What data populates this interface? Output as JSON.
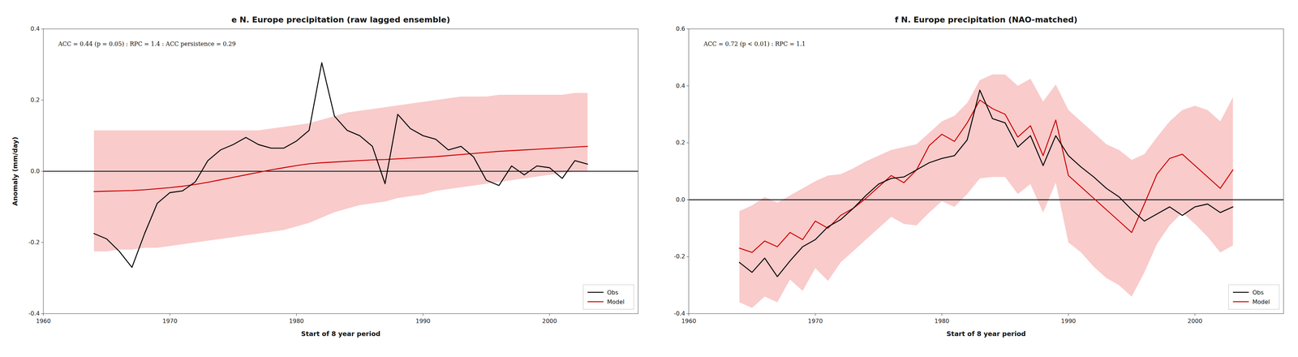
{
  "chart_data": [
    {
      "type": "line",
      "title": "e N. Europe precipitation (raw lagged ensemble)",
      "annotation": "ACC = 0.44 (p = 0.05) : RPC = 1.4 : ACC persistence = 0.29",
      "xlabel": "Start of 8 year period",
      "ylabel": "Anomaly (mm/day)",
      "x": [
        1964,
        1965,
        1966,
        1967,
        1968,
        1969,
        1970,
        1971,
        1972,
        1973,
        1974,
        1975,
        1976,
        1977,
        1978,
        1979,
        1980,
        1981,
        1982,
        1983,
        1984,
        1985,
        1986,
        1987,
        1988,
        1989,
        1990,
        1991,
        1992,
        1993,
        1994,
        1995,
        1996,
        1997,
        1998,
        1999,
        2000,
        2001,
        2002,
        2003
      ],
      "series": [
        {
          "name": "Obs",
          "color": "#000000",
          "values": [
            -0.175,
            -0.19,
            -0.225,
            -0.27,
            -0.175,
            -0.09,
            -0.06,
            -0.055,
            -0.03,
            0.03,
            0.06,
            0.075,
            0.095,
            0.075,
            0.065,
            0.065,
            0.085,
            0.115,
            0.305,
            0.155,
            0.115,
            0.1,
            0.07,
            -0.035,
            0.16,
            0.12,
            0.1,
            0.09,
            0.06,
            0.07,
            0.04,
            -0.025,
            -0.04,
            0.015,
            -0.01,
            0.015,
            0.01,
            -0.02,
            0.03,
            0.02
          ]
        },
        {
          "name": "Model",
          "color": "#cc0000",
          "values": [
            -0.057,
            -0.056,
            -0.055,
            -0.054,
            -0.052,
            -0.049,
            -0.046,
            -0.042,
            -0.037,
            -0.031,
            -0.024,
            -0.017,
            -0.01,
            -0.003,
            0.004,
            0.01,
            0.016,
            0.021,
            0.024,
            0.026,
            0.028,
            0.03,
            0.032,
            0.033,
            0.035,
            0.037,
            0.039,
            0.041,
            0.044,
            0.047,
            0.05,
            0.053,
            0.056,
            0.058,
            0.06,
            0.062,
            0.064,
            0.066,
            0.068,
            0.07
          ]
        }
      ],
      "band": {
        "color": "#f4a0a0",
        "upper": [
          0.115,
          0.115,
          0.115,
          0.115,
          0.115,
          0.115,
          0.115,
          0.115,
          0.115,
          0.115,
          0.115,
          0.115,
          0.115,
          0.115,
          0.12,
          0.125,
          0.13,
          0.135,
          0.145,
          0.155,
          0.165,
          0.17,
          0.175,
          0.18,
          0.185,
          0.19,
          0.195,
          0.2,
          0.205,
          0.21,
          0.21,
          0.21,
          0.215,
          0.215,
          0.215,
          0.215,
          0.215,
          0.215,
          0.22,
          0.22
        ],
        "lower": [
          -0.225,
          -0.225,
          -0.22,
          -0.22,
          -0.215,
          -0.215,
          -0.21,
          -0.205,
          -0.2,
          -0.195,
          -0.19,
          -0.185,
          -0.18,
          -0.175,
          -0.17,
          -0.165,
          -0.155,
          -0.145,
          -0.13,
          -0.115,
          -0.105,
          -0.095,
          -0.09,
          -0.085,
          -0.075,
          -0.07,
          -0.065,
          -0.055,
          -0.05,
          -0.045,
          -0.04,
          -0.035,
          -0.03,
          -0.025,
          -0.02,
          -0.015,
          -0.01,
          -0.005,
          0.0,
          0.0
        ]
      },
      "hline": 0,
      "xlim": [
        1960,
        2007
      ],
      "ylim": [
        -0.4,
        0.4
      ],
      "xticks": [
        1960,
        1970,
        1980,
        1990,
        2000
      ],
      "yticks": [
        -0.4,
        -0.2,
        {
          "value": 0,
          "label": "0.0"
        },
        0.2,
        0.4
      ],
      "legend": "lower right",
      "grid": false
    },
    {
      "type": "line",
      "title": "f N. Europe precipitation (NAO-matched)",
      "annotation": "ACC = 0.72 (p < 0.01) : RPC = 1.1",
      "xlabel": "Start of 8 year period",
      "x": [
        1964,
        1965,
        1966,
        1967,
        1968,
        1969,
        1970,
        1971,
        1972,
        1973,
        1974,
        1975,
        1976,
        1977,
        1978,
        1979,
        1980,
        1981,
        1982,
        1983,
        1984,
        1985,
        1986,
        1987,
        1988,
        1989,
        1990,
        1991,
        1992,
        1993,
        1994,
        1995,
        1996,
        1997,
        1998,
        1999,
        2000,
        2001,
        2002,
        2003
      ],
      "series": [
        {
          "name": "Obs",
          "color": "#000000",
          "values": [
            -0.22,
            -0.255,
            -0.205,
            -0.27,
            -0.215,
            -0.165,
            -0.14,
            -0.095,
            -0.07,
            -0.03,
            0.015,
            0.055,
            0.075,
            0.08,
            0.105,
            0.13,
            0.145,
            0.155,
            0.21,
            0.385,
            0.285,
            0.27,
            0.185,
            0.225,
            0.12,
            0.225,
            0.155,
            0.115,
            0.08,
            0.04,
            0.01,
            -0.035,
            -0.075,
            -0.05,
            -0.025,
            -0.055,
            -0.025,
            -0.015,
            -0.045,
            -0.025
          ]
        },
        {
          "name": "Model",
          "color": "#cc0000",
          "values": [
            -0.17,
            -0.185,
            -0.145,
            -0.165,
            -0.115,
            -0.14,
            -0.075,
            -0.1,
            -0.055,
            -0.03,
            0.005,
            0.045,
            0.085,
            0.06,
            0.105,
            0.19,
            0.23,
            0.205,
            0.27,
            0.35,
            0.32,
            0.3,
            0.22,
            0.26,
            0.155,
            0.28,
            0.085,
            0.045,
            0.005,
            -0.035,
            -0.075,
            -0.115,
            -0.015,
            0.09,
            0.145,
            0.16,
            0.12,
            0.08,
            0.04,
            0.105
          ]
        }
      ],
      "band": {
        "color": "#f4a0a0",
        "upper": [
          -0.04,
          -0.02,
          0.01,
          -0.01,
          0.015,
          0.04,
          0.065,
          0.085,
          0.09,
          0.11,
          0.135,
          0.155,
          0.175,
          0.185,
          0.195,
          0.235,
          0.275,
          0.295,
          0.34,
          0.42,
          0.44,
          0.44,
          0.4,
          0.425,
          0.345,
          0.405,
          0.315,
          0.275,
          0.235,
          0.195,
          0.175,
          0.14,
          0.16,
          0.22,
          0.275,
          0.315,
          0.33,
          0.315,
          0.275,
          0.36
        ],
        "lower": [
          -0.36,
          -0.38,
          -0.34,
          -0.36,
          -0.28,
          -0.32,
          -0.24,
          -0.285,
          -0.22,
          -0.18,
          -0.14,
          -0.1,
          -0.06,
          -0.085,
          -0.09,
          -0.045,
          -0.005,
          -0.025,
          0.02,
          0.075,
          0.08,
          0.08,
          0.02,
          0.055,
          -0.045,
          0.06,
          -0.15,
          -0.185,
          -0.235,
          -0.275,
          -0.3,
          -0.34,
          -0.255,
          -0.155,
          -0.09,
          -0.045,
          -0.085,
          -0.13,
          -0.185,
          -0.16
        ]
      },
      "hline": 0,
      "xlim": [
        1960,
        2007
      ],
      "ylim": [
        -0.4,
        0.6
      ],
      "xticks": [
        1960,
        1970,
        1980,
        1990,
        2000
      ],
      "yticks": [
        -0.4,
        -0.2,
        {
          "value": 0,
          "label": "0.0"
        },
        0.2,
        0.4,
        0.6
      ],
      "legend": "lower right",
      "grid": false
    }
  ]
}
